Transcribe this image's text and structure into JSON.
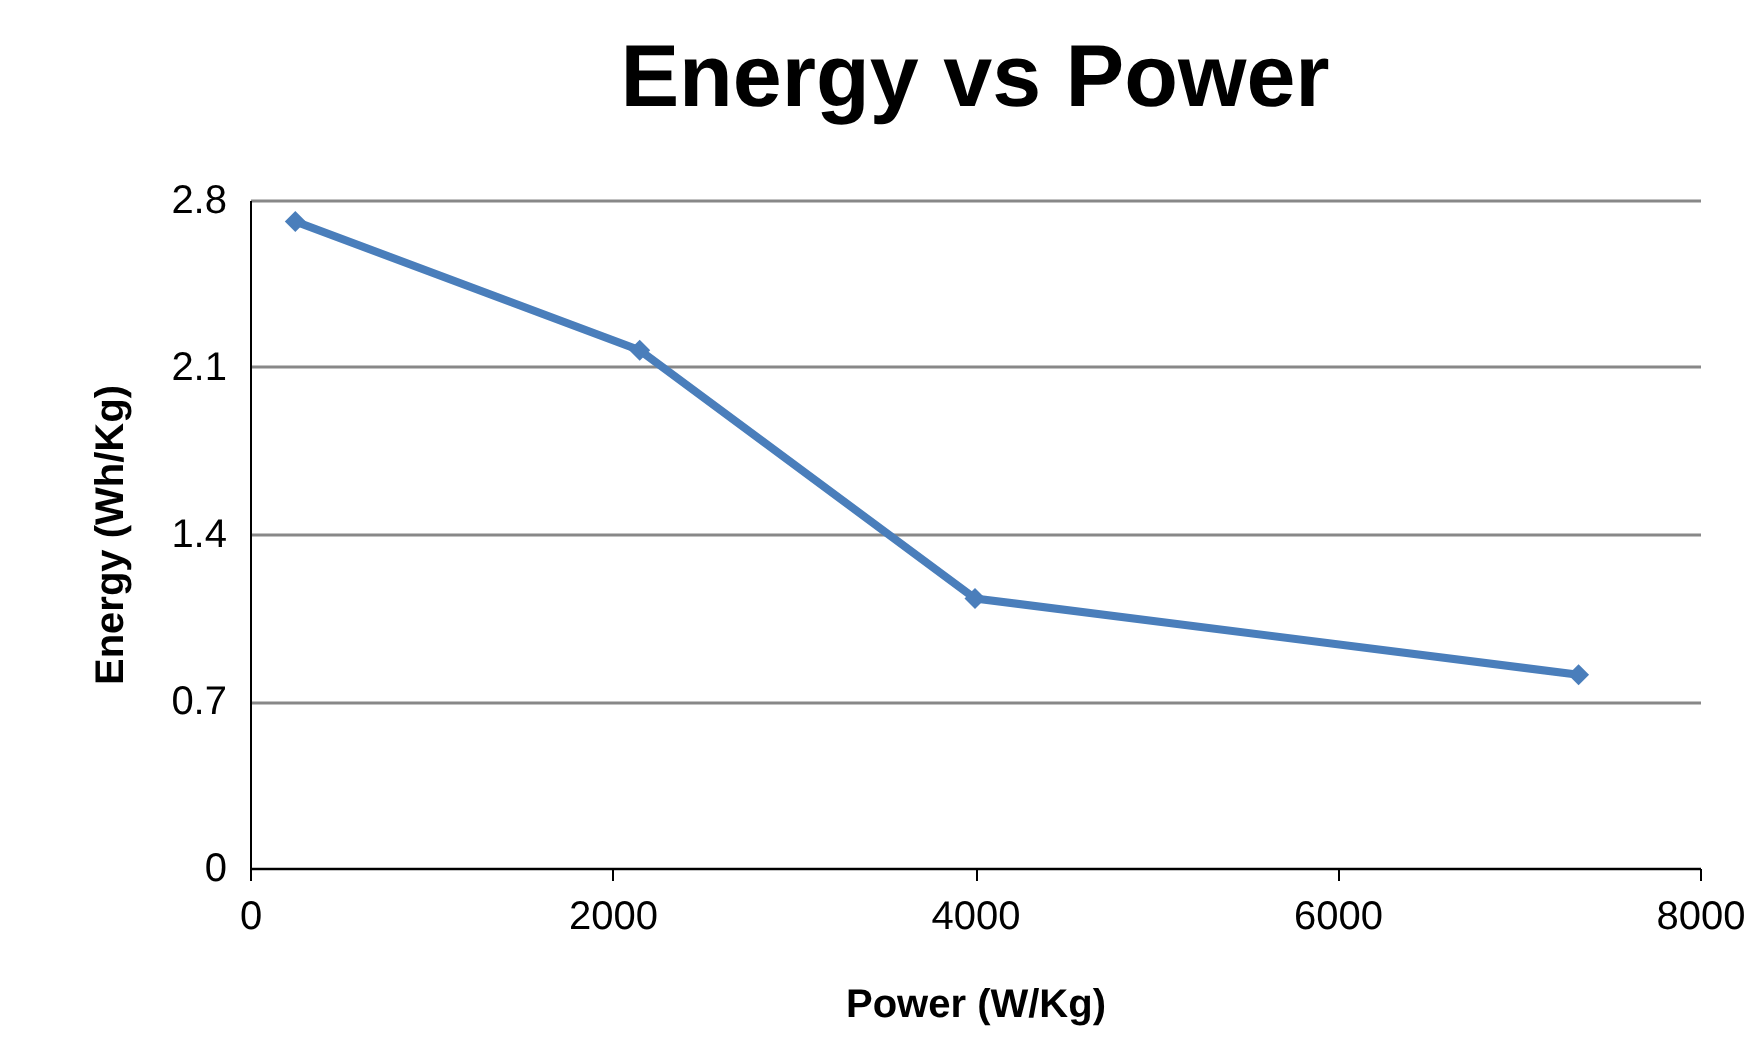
{
  "chart_data": {
    "type": "line",
    "title": "Energy vs Power",
    "xlabel": "Power (W/Kg)",
    "ylabel": "Energy (Wh/Kg)",
    "x": [
      250,
      2150,
      4000,
      7330
    ],
    "series": [
      {
        "color": "#4a7ebb",
        "values": [
          2.71,
          2.17,
          1.13,
          0.81
        ]
      }
    ],
    "xlim": [
      0,
      8000
    ],
    "xticks": [
      0,
      2000,
      4000,
      6000,
      8000
    ],
    "ylim": [
      0,
      2.8
    ],
    "yticks": [
      0,
      0.7,
      1.4,
      2.1,
      2.8
    ],
    "grid": "y",
    "marker": "diamond",
    "line_style": "solid"
  }
}
